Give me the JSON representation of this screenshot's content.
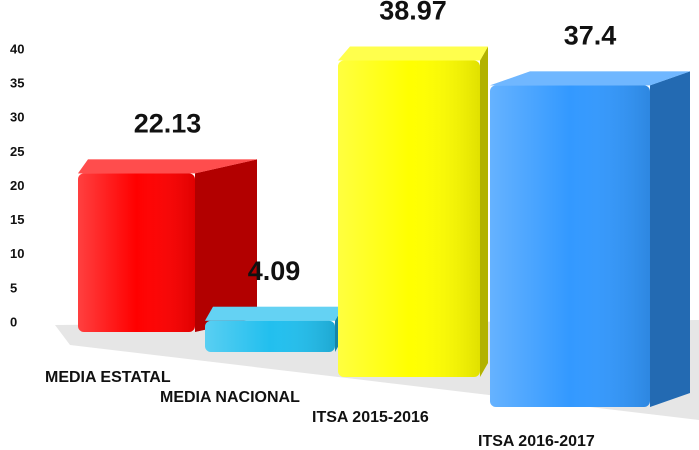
{
  "chart_data": {
    "type": "bar3d",
    "categories": [
      "MEDIA ESTATAL",
      "MEDIA NACIONAL",
      "ITSA 2015-2016",
      "ITSA 2016-2017"
    ],
    "values": [
      22.13,
      4.09,
      38.97,
      37.4
    ],
    "colors": [
      "#ff0000",
      "#22bfee",
      "#ffff00",
      "#3399ff"
    ],
    "ylim": [
      0,
      40
    ],
    "yticks": [
      0,
      5,
      10,
      15,
      20,
      25,
      30,
      35,
      40
    ],
    "grid": false
  }
}
